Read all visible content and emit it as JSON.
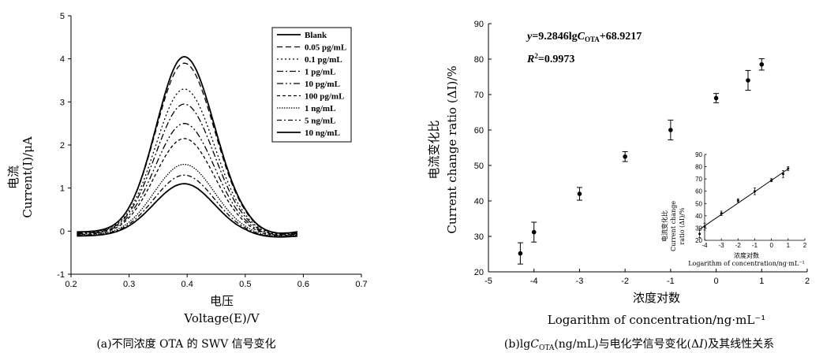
{
  "chart_data": [
    {
      "type": "line",
      "xlabel_cn": "电压",
      "xlabel_en": "Voltage(E)/V",
      "ylabel_cn": "电流",
      "ylabel_en": "Current(I)/μA",
      "caption": "(a)不同浓度 OTA 的 SWV 信号变化",
      "xlim": [
        0.2,
        0.7
      ],
      "ylim": [
        -1,
        5
      ],
      "xticks": [
        "0.2",
        "0.3",
        "0.4",
        "0.5",
        "0.6",
        "0.7"
      ],
      "yticks": [
        "-1",
        "0",
        "1",
        "2",
        "3",
        "4",
        "5"
      ],
      "legend_position": "top-right",
      "grid": false,
      "series": [
        {
          "name": "Blank",
          "peak": 4.05,
          "dash": "solid"
        },
        {
          "name": "0.05 pg/mL",
          "peak": 3.9,
          "dash": "dash"
        },
        {
          "name": "0.1 pg/mL",
          "peak": 3.3,
          "dash": "dot"
        },
        {
          "name": "1 pg/mL",
          "peak": 2.95,
          "dash": "dashdot"
        },
        {
          "name": "10 pg/mL",
          "peak": 2.5,
          "dash": "dashdotdot"
        },
        {
          "name": "100 pg/mL",
          "peak": 2.15,
          "dash": "shortdash"
        },
        {
          "name": "1 ng/mL",
          "peak": 1.55,
          "dash": "densedot"
        },
        {
          "name": "5 ng/mL",
          "peak": 1.3,
          "dash": "dashdot2"
        },
        {
          "name": "10 ng/mL",
          "peak": 1.1,
          "dash": "solid"
        }
      ],
      "peak_x": 0.395,
      "x_range": [
        0.21,
        0.59
      ]
    },
    {
      "type": "scatter",
      "xlabel_cn": "浓度对数",
      "xlabel_en": "Logarithm of concentration/ng·mL⁻¹",
      "ylabel_cn": "电流变化比",
      "ylabel_en": "Current change ratio (ΔI)/%",
      "caption": "(b)lgC_OTA(ng/mL)与电化学信号变化(ΔI)及其线性关系",
      "caption_pre": "(b)lg",
      "caption_c": "C",
      "caption_sub": "OTA",
      "caption_post": "(ng/mL)与电化学信号变化(Δ",
      "caption_i": "I",
      "caption_end": ")及其线性关系",
      "equation": {
        "y": "y",
        "mid": "=9.2846lg",
        "c": "C",
        "sub": "OTA",
        "tail": "+68.9217"
      },
      "r2": {
        "r": "R",
        "tail": "=0.9973"
      },
      "xlim": [
        -5,
        2
      ],
      "ylim": [
        20,
        90
      ],
      "xticks": [
        "-5",
        "-4",
        "-3",
        "-2",
        "-1",
        "0",
        "1",
        "2"
      ],
      "yticks": [
        "20",
        "30",
        "40",
        "50",
        "60",
        "70",
        "80",
        "90"
      ],
      "points": [
        {
          "x": -4.3,
          "y": 25.2,
          "err": 3.0
        },
        {
          "x": -4.0,
          "y": 31.2,
          "err": 2.8
        },
        {
          "x": -3.0,
          "y": 42.0,
          "err": 1.8
        },
        {
          "x": -2.0,
          "y": 52.5,
          "err": 1.4
        },
        {
          "x": -1.0,
          "y": 60.0,
          "err": 2.8
        },
        {
          "x": 0.0,
          "y": 69.0,
          "err": 1.3
        },
        {
          "x": 0.7,
          "y": 74.0,
          "err": 2.8
        },
        {
          "x": 1.0,
          "y": 78.5,
          "err": 1.6
        }
      ],
      "inset": {
        "xlabel_cn": "浓度对数",
        "xlabel_en": "Logarithm of concentration/ng·mL⁻¹",
        "ylabel_cn": "电流变化比",
        "ylabel_en1": "Current change",
        "ylabel_en2": "ratio (ΔI)/%",
        "xlim": [
          -4,
          2
        ],
        "ylim": [
          20,
          90
        ],
        "xticks": [
          "-4",
          "-3",
          "-2",
          "-1",
          "0",
          "1",
          "2"
        ],
        "yticks": [
          "20",
          "30",
          "40",
          "50",
          "60",
          "70",
          "80",
          "90"
        ],
        "fit": {
          "slope": 9.2846,
          "intercept": 68.9217,
          "x_range": [
            -4.3,
            1.0
          ]
        }
      }
    }
  ]
}
